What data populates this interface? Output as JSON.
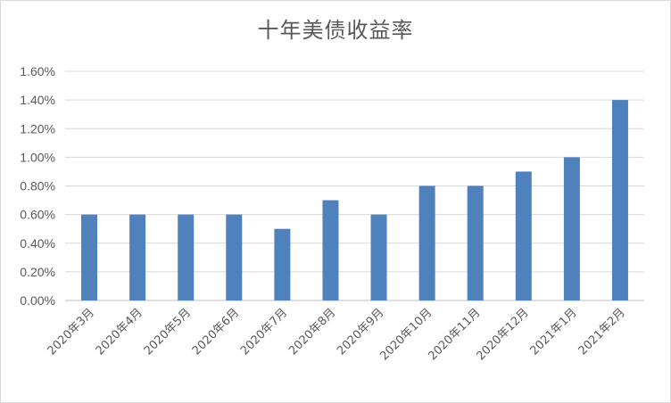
{
  "chart_data": {
    "type": "bar",
    "title": "十年美债收益率",
    "categories": [
      "2020年3月",
      "2020年4月",
      "2020年5月",
      "2020年6月",
      "2020年7月",
      "2020年8月",
      "2020年9月",
      "2020年10月",
      "2020年11月",
      "2020年12月",
      "2021年1月",
      "2021年2月"
    ],
    "values": [
      0.6,
      0.6,
      0.6,
      0.6,
      0.5,
      0.7,
      0.6,
      0.8,
      0.8,
      0.9,
      1.0,
      1.4
    ],
    "y_ticks": [
      "0.00%",
      "0.20%",
      "0.40%",
      "0.60%",
      "0.80%",
      "1.00%",
      "1.20%",
      "1.40%",
      "1.60%"
    ],
    "ylim": [
      0,
      1.6
    ],
    "grid": true,
    "legend": "none",
    "bar_color": "#4f81bd"
  }
}
